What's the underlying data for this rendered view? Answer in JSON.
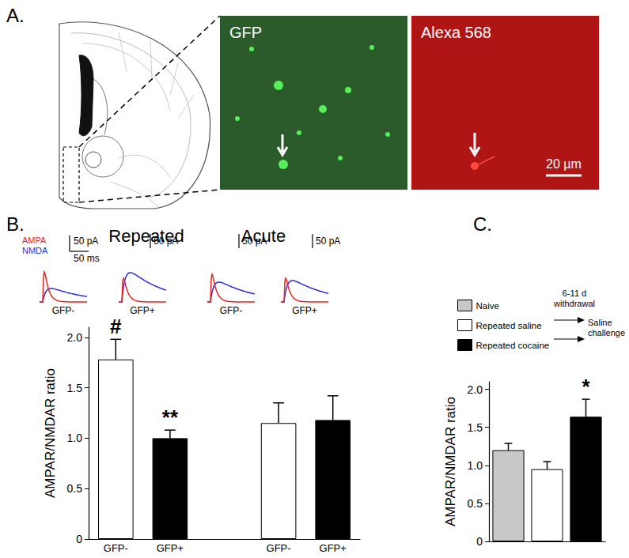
{
  "panels": {
    "A": {
      "label": "A.",
      "images": [
        {
          "label": "GFP"
        },
        {
          "label": "Alexa 568",
          "scale_bar": "20 µm"
        }
      ]
    },
    "B": {
      "label": "B.",
      "trace_legend": [
        {
          "name": "AMPA",
          "color": "#e8251f"
        },
        {
          "name": "NMDA",
          "color": "#2b2bd8"
        }
      ],
      "scale_bars": [
        "50 pA",
        "50 ms"
      ],
      "groups": [
        {
          "title": "Repeated",
          "traces": [
            {
              "label": "GFP-",
              "scale_bar": null
            },
            {
              "label": "GFP+",
              "scale_bar": "50 pA"
            }
          ]
        },
        {
          "title": "Acute",
          "traces": [
            {
              "label": "GFP-",
              "scale_bar": "50 pA"
            },
            {
              "label": "GFP+",
              "scale_bar": "50 pA"
            }
          ]
        }
      ]
    },
    "C": {
      "label": "C.",
      "protocol": {
        "withdrawal": "6-11 d withdrawal",
        "challenge": "Saline challenge"
      }
    }
  },
  "chart_data": [
    {
      "type": "bar",
      "ylabel": "AMPAR/NMDAR ratio",
      "categories": [
        "GFP-",
        "GFP+",
        null,
        "GFP-",
        "GFP+"
      ],
      "values": [
        1.78,
        1.0,
        null,
        1.15,
        1.18
      ],
      "errors": [
        0.2,
        0.08,
        null,
        0.2,
        0.24
      ],
      "annotations": [
        "#",
        "**",
        null,
        null,
        null
      ],
      "colors": [
        "#ffffff",
        "#000000",
        null,
        "#ffffff",
        "#000000"
      ],
      "ylim": [
        0,
        2.1
      ],
      "yticks": [
        0,
        0.5,
        {
          "value": 1,
          "label": "1.0"
        },
        1.5,
        {
          "value": 2,
          "label": "2.0"
        }
      ],
      "grid": false
    },
    {
      "type": "bar",
      "ylabel": "AMPAR/NMDAR ratio",
      "categories": [
        null,
        null,
        null
      ],
      "series": [
        {
          "name": "Naive",
          "color": "#c8c8c8",
          "values": [
            1.2,
            null,
            null
          ],
          "errors": [
            0.09,
            null,
            null
          ],
          "annotations": [
            null,
            null,
            null
          ]
        },
        {
          "name": "Repeated saline",
          "color": "#ffffff",
          "values": [
            null,
            0.95,
            null
          ],
          "errors": [
            null,
            0.1,
            null
          ],
          "annotations": [
            null,
            null,
            null
          ]
        },
        {
          "name": "Repeated cocaine",
          "color": "#000000",
          "values": [
            null,
            null,
            1.64
          ],
          "errors": [
            null,
            null,
            0.23
          ],
          "annotations": [
            null,
            null,
            "*"
          ]
        }
      ],
      "ylim": [
        0,
        2.1
      ],
      "yticks": [
        0,
        0.5,
        {
          "value": 1,
          "label": "1.0"
        },
        1.5,
        {
          "value": 2,
          "label": "2.0"
        }
      ],
      "grid": false,
      "legend": "top-left",
      "tick_labels": "y"
    }
  ]
}
